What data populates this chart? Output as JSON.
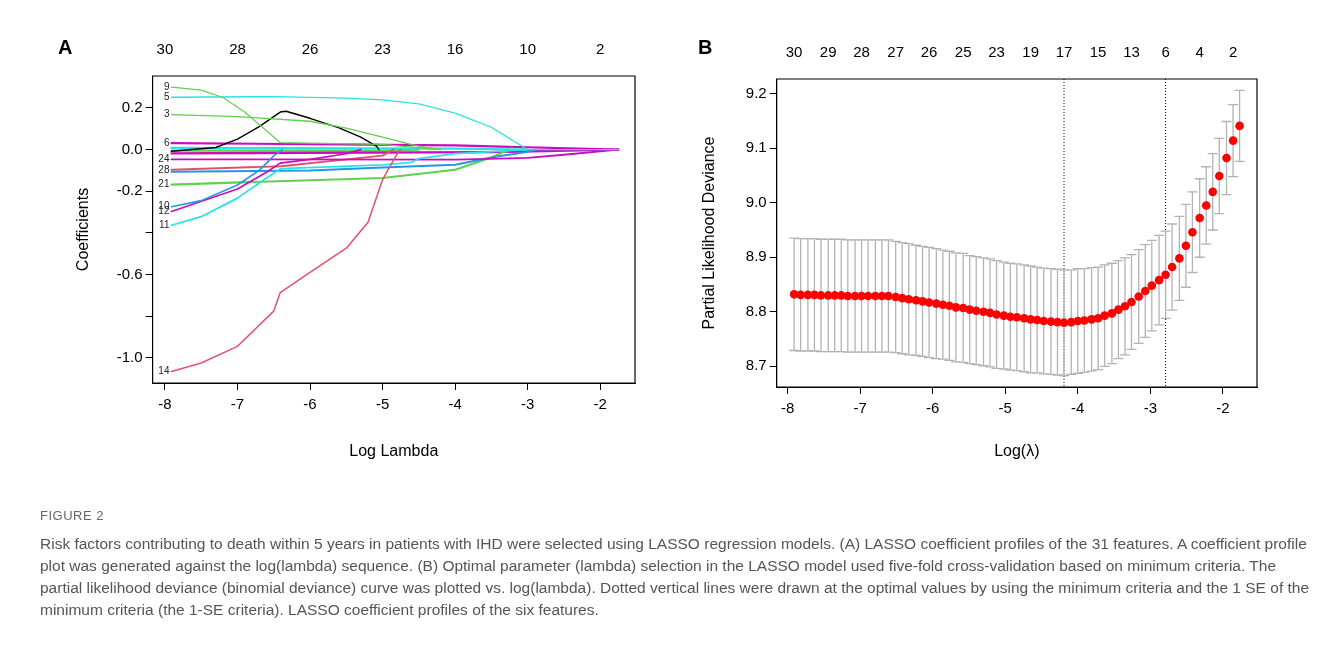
{
  "chart_data": [
    {
      "type": "line",
      "title": "A",
      "xlabel": "Log Lambda",
      "ylabel": "Coefficients",
      "xlim": [
        -8.17,
        -1.52
      ],
      "xticks": [
        -8,
        -7,
        -6,
        -5,
        -4,
        -3,
        -2
      ],
      "ylim": [
        -1.12,
        0.353
      ],
      "yticks": [
        {
          "value": -1.0,
          "label": "-1.0"
        },
        {
          "value": -0.8,
          "label": null
        },
        {
          "value": -0.6,
          "label": "-0.6"
        },
        {
          "value": -0.4,
          "label": null
        },
        {
          "value": -0.2,
          "label": "-0.2"
        },
        {
          "value": 0,
          "label": "0.0"
        },
        {
          "value": 0.2,
          "label": "0.2"
        }
      ],
      "series": [
        {
          "name": "9",
          "color": "#61d04f",
          "x": [
            -7.91,
            -7.5,
            -7.2,
            -6.9,
            -6.6,
            -6.41,
            -5,
            -4.5,
            -4.2
          ],
          "values": [
            0.3,
            0.285,
            0.25,
            0.18,
            0.09,
            0.033,
            0.025,
            0.008,
            0
          ]
        },
        {
          "name": "5",
          "color": "#28e2e5",
          "x": [
            -7.91,
            -6.5,
            -5.5,
            -5,
            -4.5,
            -4,
            -3.5,
            -3.2,
            -3.0,
            -1.75
          ],
          "values": [
            0.251,
            0.254,
            0.247,
            0.238,
            0.219,
            0.175,
            0.107,
            0.042,
            0,
            0
          ]
        },
        {
          "name": "3",
          "color": "#61d04f",
          "x": [
            -7.91,
            -7,
            -6,
            -5.5,
            -5,
            -4.6,
            -4.4,
            -4.2
          ],
          "values": [
            0.168,
            0.158,
            0.136,
            0.103,
            0.06,
            0.024,
            0.01,
            0
          ]
        },
        {
          "color": "#000000",
          "x": [
            -7.91,
            -7.3,
            -7,
            -6.7,
            -6.41,
            -6.33,
            -6,
            -5.6,
            -5.3,
            -5.08,
            -5.05
          ],
          "values": [
            -0.008,
            0.01,
            0.05,
            0.11,
            0.18,
            0.184,
            0.15,
            0.104,
            0.06,
            0.015,
            0
          ]
        },
        {
          "name": "14",
          "color": "#df536b",
          "x": [
            -7.91,
            -7.5,
            -7,
            -6.5,
            -6.41,
            -6.3,
            -6,
            -5.5,
            -5.2,
            -5,
            -4.9,
            -4.78,
            -4.75
          ],
          "values": [
            -1.065,
            -1.024,
            -0.944,
            -0.775,
            -0.686,
            -0.66,
            -0.589,
            -0.473,
            -0.349,
            -0.145,
            -0.082,
            -0.01,
            0
          ]
        },
        {
          "name": "10",
          "color": "#2297e6",
          "x": [
            -7.91,
            -7.5,
            -7,
            -6.7,
            -6.5,
            -6.38
          ],
          "values": [
            -0.274,
            -0.245,
            -0.17,
            -0.1,
            -0.03,
            0
          ]
        },
        {
          "name": "12",
          "color": "#cd0bbc",
          "x": [
            -7.91,
            -7,
            -6.6,
            -6.41,
            -6,
            -5.5,
            -5.3
          ],
          "values": [
            -0.297,
            -0.189,
            -0.109,
            -0.065,
            -0.047,
            -0.02,
            0
          ]
        },
        {
          "name": "11",
          "color": "#28e2e5",
          "x": [
            -7.91,
            -7.5,
            -7,
            -6.6,
            -6.4,
            -5,
            -4.6,
            -4.5,
            -4,
            -3
          ],
          "values": [
            -0.363,
            -0.322,
            -0.233,
            -0.136,
            -0.091,
            -0.073,
            -0.061,
            -0.043,
            -0.02,
            0
          ]
        },
        {
          "name": "24",
          "color": "#cd0bbc",
          "x": [
            -7.91,
            -4,
            -3,
            -2.5,
            -1.75
          ],
          "values": [
            -0.047,
            -0.048,
            -0.04,
            -0.025,
            0
          ]
        },
        {
          "name": "28",
          "color": "#df536b",
          "x": [
            -7.91,
            -6.4,
            -5,
            -4.85
          ],
          "values": [
            -0.097,
            -0.08,
            -0.029,
            0
          ]
        },
        {
          "color": "#2297e6",
          "x": [
            -7.91,
            -6,
            -5,
            -4,
            -3.5,
            -3,
            -2.9
          ],
          "values": [
            -0.106,
            -0.1,
            -0.086,
            -0.073,
            -0.038,
            -0.011,
            0
          ]
        },
        {
          "name": "21",
          "color": "#61d04f",
          "x": [
            -7.91,
            -5,
            -4,
            -3.5,
            -3.25
          ],
          "values": [
            -0.168,
            -0.136,
            -0.097,
            -0.038,
            0
          ]
        },
        {
          "name": "6",
          "color": "#cd0bbc",
          "x": [
            -7.91,
            -4,
            -1.75
          ],
          "values": [
            0.031,
            0.02,
            0
          ]
        },
        {
          "color": "#28e2e5",
          "x": [
            -7.91,
            -4,
            -3
          ],
          "values": [
            0.008,
            0.005,
            0
          ]
        },
        {
          "color": "#cd0bbc",
          "x": [
            -7.91,
            -3.5,
            -1.75
          ],
          "values": [
            -0.018,
            -0.012,
            0
          ]
        },
        {
          "color": "#61d04f",
          "x": [
            -7.91,
            -5,
            -4.5
          ],
          "values": [
            -0.005,
            -0.005,
            0
          ]
        }
      ],
      "annotations": [
        "30",
        "28",
        "26",
        "23",
        "16",
        "10",
        "2",
        "FIGURE 2",
        "Risk factors contributing to death within 5 years in patients with IHD were selected using LASSO regression models. (A) LASSO coefficient profiles of the 31 features. A coefficient profile plot was generated against the log(lambda) sequence. (B) Optimal parameter (lambda) selection in the LASSO model used five-fold cross-validation based on minimum criteria. The partial likelihood deviance (binomial deviance) curve was plotted vs. log(lambda). Dotted vertical lines were drawn at the optimal values by using the minimum criteria and the 1 SE of the minimum criteria (the 1-SE criteria). LASSO coefficient profiles of the six features."
      ]
    },
    {
      "type": "scatter",
      "title": "B",
      "xlabel": "Log(λ)",
      "ylabel": "Partial Likelihood Deviance",
      "marker": "circle",
      "color": "#ff0000",
      "xlim": [
        -8.15,
        -1.53
      ],
      "xticks": [
        -8,
        -7,
        -6,
        -5,
        -4,
        -3,
        -2
      ],
      "ylim": [
        8.662,
        9.227
      ],
      "yticks": [
        8.7,
        8.8,
        8.9,
        {
          "value": 9.0,
          "label": "9.0"
        },
        9.1,
        9.2
      ],
      "annotations": [
        "30",
        "29",
        "28",
        "27",
        "26",
        "25",
        "23",
        "19",
        "17",
        "15",
        "13",
        "6",
        "4",
        "2"
      ],
      "x": [
        -7.91,
        -7.82,
        -7.72,
        -7.63,
        -7.54,
        -7.44,
        -7.35,
        -7.26,
        -7.17,
        -7.07,
        -6.98,
        -6.89,
        -6.79,
        -6.7,
        -6.61,
        -6.51,
        -6.42,
        -6.33,
        -6.23,
        -6.14,
        -6.05,
        -5.95,
        -5.86,
        -5.77,
        -5.68,
        -5.58,
        -5.49,
        -5.4,
        -5.3,
        -5.21,
        -5.12,
        -5.02,
        -4.93,
        -4.84,
        -4.74,
        -4.65,
        -4.56,
        -4.47,
        -4.37,
        -4.28,
        -4.19,
        -4.09,
        -4.0,
        -3.91,
        -3.81,
        -3.72,
        -3.63,
        -3.53,
        -3.44,
        -3.35,
        -3.26,
        -3.16,
        -3.07,
        -2.98,
        -2.88,
        -2.79,
        -2.7,
        -2.6,
        -2.51,
        -2.42,
        -2.32,
        -2.23,
        -2.14,
        -2.05,
        -1.95,
        -1.86,
        -1.77
      ],
      "values": [
        8.832,
        8.831,
        8.831,
        8.831,
        8.83,
        8.83,
        8.83,
        8.83,
        8.829,
        8.829,
        8.829,
        8.829,
        8.829,
        8.829,
        8.829,
        8.827,
        8.825,
        8.823,
        8.821,
        8.819,
        8.817,
        8.815,
        8.813,
        8.811,
        8.808,
        8.807,
        8.804,
        8.802,
        8.8,
        8.798,
        8.795,
        8.793,
        8.791,
        8.79,
        8.788,
        8.786,
        8.785,
        8.783,
        8.782,
        8.781,
        8.78,
        8.781,
        8.783,
        8.784,
        8.786,
        8.788,
        8.793,
        8.797,
        8.804,
        8.81,
        8.818,
        8.828,
        8.838,
        8.848,
        8.858,
        8.868,
        8.882,
        8.898,
        8.921,
        8.946,
        8.972,
        8.995,
        9.02,
        9.049,
        9.082,
        9.114,
        9.141
      ],
      "errors": [
        0.103,
        0.103,
        0.103,
        0.103,
        0.103,
        0.103,
        0.103,
        0.103,
        0.103,
        0.103,
        0.103,
        0.103,
        0.103,
        0.103,
        0.103,
        0.102,
        0.102,
        0.102,
        0.101,
        0.101,
        0.101,
        0.101,
        0.1,
        0.1,
        0.1,
        0.1,
        0.099,
        0.099,
        0.099,
        0.099,
        0.099,
        0.098,
        0.098,
        0.098,
        0.098,
        0.098,
        0.097,
        0.097,
        0.097,
        0.097,
        0.097,
        0.096,
        0.096,
        0.095,
        0.095,
        0.094,
        0.093,
        0.092,
        0.09,
        0.089,
        0.087,
        0.086,
        0.085,
        0.083,
        0.082,
        0.08,
        0.079,
        0.077,
        0.076,
        0.074,
        0.072,
        0.071,
        0.07,
        0.069,
        0.067,
        0.066,
        0.065
      ],
      "ref_lines": [
        {
          "axis": "x",
          "value": -4.19,
          "line_style": "dotted",
          "color": "#000000"
        },
        {
          "axis": "x",
          "value": -2.79,
          "line_style": "dotted",
          "color": "#000000"
        }
      ]
    }
  ]
}
